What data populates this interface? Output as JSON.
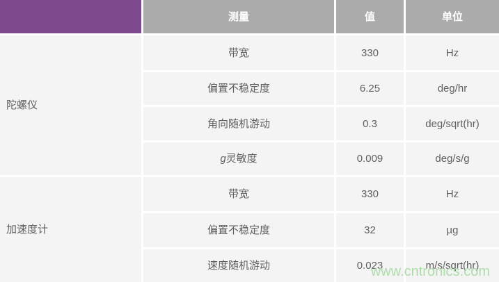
{
  "table": {
    "column_headers": {
      "measurement": "测量",
      "value": "值",
      "unit": "单位"
    },
    "groups": [
      {
        "name": "陀螺仪",
        "rows": [
          {
            "measurement": "带宽",
            "value": "330",
            "unit": "Hz"
          },
          {
            "measurement": "偏置不稳定度",
            "value": "6.25",
            "unit": "deg/hr"
          },
          {
            "measurement": "角向随机游动",
            "value": "0.3",
            "unit": "deg/sqrt(hr)"
          },
          {
            "measurement_prefix": "g",
            "measurement": "灵敏度",
            "value": "0.009",
            "unit": "deg/s/g"
          }
        ]
      },
      {
        "name": "加速度计",
        "rows": [
          {
            "measurement": "带宽",
            "value": "330",
            "unit": "Hz"
          },
          {
            "measurement": "偏置不稳定度",
            "value": "32",
            "unit": "µg"
          },
          {
            "measurement": "速度随机游动",
            "value": "0.023",
            "unit": "m/s/sqrt(hr)"
          }
        ]
      }
    ]
  },
  "watermark": {
    "text": "www.cntronics.com",
    "color": "#aedcab"
  },
  "colors": {
    "corner_purple": "#7c4a8d",
    "header_gray": "#ababab",
    "cell_background": "#f4f4f5",
    "body_text": "#5f5f5f",
    "gap_white": "#ffffff"
  }
}
